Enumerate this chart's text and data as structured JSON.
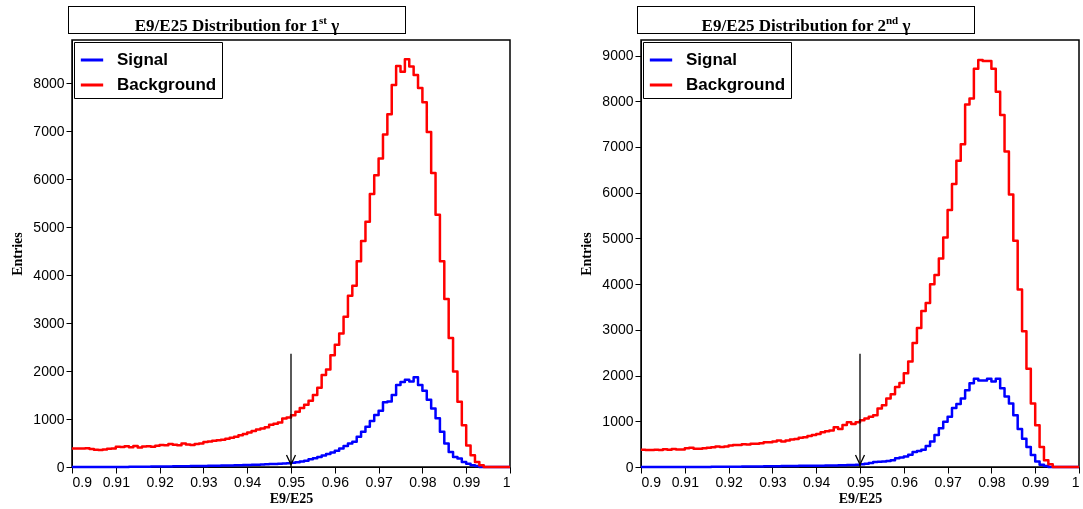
{
  "chart_data": [
    {
      "type": "histogram",
      "title": "E9/E25 Distribution for 1$^{st}$ γ",
      "xlabel": "E9/E25",
      "ylabel": "Entries",
      "legend": "top left",
      "bins": [
        0.9,
        0.901,
        0.902,
        0.903,
        0.904,
        0.905,
        0.906,
        0.907,
        0.908,
        0.909,
        0.91,
        0.911,
        0.912,
        0.913,
        0.914,
        0.915,
        0.916,
        0.917,
        0.918,
        0.919,
        0.92,
        0.921,
        0.922,
        0.923,
        0.924,
        0.925,
        0.926,
        0.927,
        0.928,
        0.929,
        0.93,
        0.931,
        0.932,
        0.933,
        0.934,
        0.935,
        0.936,
        0.937,
        0.938,
        0.939,
        0.94,
        0.941,
        0.942,
        0.943,
        0.944,
        0.945,
        0.946,
        0.947,
        0.948,
        0.949,
        0.95,
        0.951,
        0.952,
        0.953,
        0.954,
        0.955,
        0.956,
        0.957,
        0.958,
        0.959,
        0.96,
        0.961,
        0.962,
        0.963,
        0.964,
        0.965,
        0.966,
        0.967,
        0.968,
        0.969,
        0.97,
        0.971,
        0.972,
        0.973,
        0.974,
        0.975,
        0.976,
        0.977,
        0.978,
        0.979,
        0.98,
        0.981,
        0.982,
        0.983,
        0.984,
        0.985,
        0.986,
        0.987,
        0.988,
        0.989,
        0.99,
        0.991,
        0.992,
        0.993,
        0.994,
        0.995,
        0.996,
        0.997,
        0.998,
        0.999,
        1
      ],
      "series": [
        {
          "name": "Signal",
          "color": "#0000ff",
          "values": [
            0,
            0,
            0,
            0,
            0,
            0,
            0,
            0,
            0,
            0,
            0,
            0,
            0,
            5,
            5,
            5,
            5,
            5,
            10,
            10,
            10,
            10,
            10,
            15,
            15,
            15,
            15,
            20,
            20,
            20,
            20,
            25,
            25,
            25,
            30,
            30,
            30,
            35,
            35,
            40,
            40,
            45,
            45,
            50,
            55,
            60,
            65,
            70,
            75,
            80,
            90,
            100,
            115,
            130,
            160,
            180,
            210,
            240,
            270,
            300,
            340,
            385,
            440,
            490,
            525,
            630,
            735,
            840,
            960,
            1085,
            1175,
            1350,
            1365,
            1500,
            1710,
            1770,
            1820,
            1780,
            1870,
            1710,
            1590,
            1400,
            1220,
            1015,
            735,
            490,
            315,
            210,
            175,
            105,
            70,
            35,
            20,
            0,
            0,
            0,
            0,
            0,
            0,
            0
          ]
        },
        {
          "name": "Background",
          "color": "#ff0000",
          "values": [
            385,
            385,
            385,
            390,
            375,
            360,
            355,
            365,
            380,
            385,
            420,
            415,
            430,
            410,
            440,
            405,
            425,
            435,
            420,
            445,
            460,
            455,
            480,
            465,
            455,
            490,
            470,
            460,
            480,
            490,
            520,
            530,
            545,
            560,
            570,
            590,
            610,
            630,
            660,
            690,
            720,
            750,
            780,
            800,
            830,
            880,
            900,
            930,
            1010,
            1030,
            1080,
            1150,
            1230,
            1300,
            1380,
            1500,
            1650,
            1920,
            2030,
            2330,
            2550,
            2780,
            3130,
            3570,
            3780,
            4290,
            4710,
            5110,
            5690,
            6080,
            6430,
            6930,
            7350,
            7960,
            8360,
            8240,
            8500,
            8350,
            8170,
            7900,
            7600,
            6980,
            6130,
            5260,
            4290,
            3500,
            2690,
            1990,
            1360,
            870,
            450,
            245,
            105,
            35,
            0,
            0,
            0,
            0,
            0,
            0
          ]
        }
      ],
      "xlim": [
        0.9,
        1
      ],
      "xticks": [
        0.9,
        0.91,
        0.92,
        0.93,
        0.94,
        0.95,
        0.96,
        0.97,
        0.98,
        0.99,
        1
      ],
      "ylim": [
        0,
        8900
      ],
      "yticks": [
        0,
        1000,
        2000,
        3000,
        4000,
        5000,
        6000,
        7000,
        8000
      ],
      "ref_lines": [
        {
          "axis": "x",
          "value": 0.95
        }
      ]
    },
    {
      "type": "histogram",
      "title": "E9/E25 Distribution for 2$^{nd}$ γ",
      "xlabel": "E9/E25",
      "ylabel": "Entries",
      "legend": "top left",
      "bins": [
        0.9,
        0.901,
        0.902,
        0.903,
        0.904,
        0.905,
        0.906,
        0.907,
        0.908,
        0.909,
        0.91,
        0.911,
        0.912,
        0.913,
        0.914,
        0.915,
        0.916,
        0.917,
        0.918,
        0.919,
        0.92,
        0.921,
        0.922,
        0.923,
        0.924,
        0.925,
        0.926,
        0.927,
        0.928,
        0.929,
        0.93,
        0.931,
        0.932,
        0.933,
        0.934,
        0.935,
        0.936,
        0.937,
        0.938,
        0.939,
        0.94,
        0.941,
        0.942,
        0.943,
        0.944,
        0.945,
        0.946,
        0.947,
        0.948,
        0.949,
        0.95,
        0.951,
        0.952,
        0.953,
        0.954,
        0.955,
        0.956,
        0.957,
        0.958,
        0.959,
        0.96,
        0.961,
        0.962,
        0.963,
        0.964,
        0.965,
        0.966,
        0.967,
        0.968,
        0.969,
        0.97,
        0.971,
        0.972,
        0.973,
        0.974,
        0.975,
        0.976,
        0.977,
        0.978,
        0.979,
        0.98,
        0.981,
        0.982,
        0.983,
        0.984,
        0.985,
        0.986,
        0.987,
        0.988,
        0.989,
        0.99,
        0.991,
        0.992,
        0.993,
        0.994,
        0.995,
        0.996,
        0.997,
        0.998,
        0.999,
        1
      ],
      "series": [
        {
          "name": "Signal",
          "color": "#0000ff",
          "values": [
            0,
            0,
            0,
            0,
            0,
            0,
            0,
            0,
            0,
            0,
            0,
            0,
            0,
            0,
            0,
            0,
            5,
            5,
            5,
            5,
            5,
            5,
            5,
            10,
            10,
            10,
            10,
            10,
            15,
            15,
            15,
            15,
            20,
            20,
            20,
            20,
            25,
            25,
            25,
            30,
            30,
            30,
            35,
            35,
            35,
            40,
            40,
            45,
            45,
            50,
            60,
            70,
            90,
            110,
            115,
            120,
            130,
            150,
            190,
            210,
            230,
            270,
            330,
            350,
            380,
            460,
            560,
            700,
            850,
            990,
            1100,
            1290,
            1380,
            1500,
            1680,
            1830,
            1930,
            1890,
            1890,
            1930,
            1870,
            1930,
            1720,
            1540,
            1390,
            1130,
            830,
            620,
            440,
            260,
            120,
            50,
            20,
            0,
            0,
            0,
            0,
            0,
            0,
            0
          ]
        },
        {
          "name": "Background",
          "color": "#ff0000",
          "values": [
            380,
            370,
            370,
            375,
            370,
            390,
            380,
            395,
            385,
            385,
            410,
            420,
            400,
            400,
            410,
            420,
            430,
            450,
            440,
            450,
            470,
            480,
            480,
            500,
            490,
            510,
            510,
            520,
            540,
            540,
            560,
            580,
            560,
            580,
            600,
            610,
            640,
            650,
            680,
            700,
            720,
            760,
            780,
            800,
            870,
            830,
            920,
            980,
            940,
            980,
            1020,
            1060,
            1100,
            1130,
            1280,
            1350,
            1500,
            1590,
            1750,
            1840,
            2050,
            2310,
            2710,
            3040,
            3410,
            3590,
            4000,
            4200,
            4560,
            5020,
            5620,
            6190,
            6700,
            7060,
            7930,
            8060,
            8710,
            8900,
            8880,
            8880,
            8710,
            8210,
            7700,
            6900,
            5960,
            4950,
            3880,
            2970,
            2150,
            1390,
            915,
            440,
            150,
            60,
            0,
            0,
            0,
            0,
            0,
            0
          ]
        }
      ],
      "xlim": [
        0.9,
        1
      ],
      "xticks": [
        0.9,
        0.91,
        0.92,
        0.93,
        0.94,
        0.95,
        0.96,
        0.97,
        0.98,
        0.99,
        1
      ],
      "ylim": [
        0,
        9340
      ],
      "yticks": [
        0,
        1000,
        2000,
        3000,
        4000,
        5000,
        6000,
        7000,
        8000,
        9000
      ],
      "ref_lines": [
        {
          "axis": "x",
          "value": 0.95
        }
      ]
    }
  ]
}
